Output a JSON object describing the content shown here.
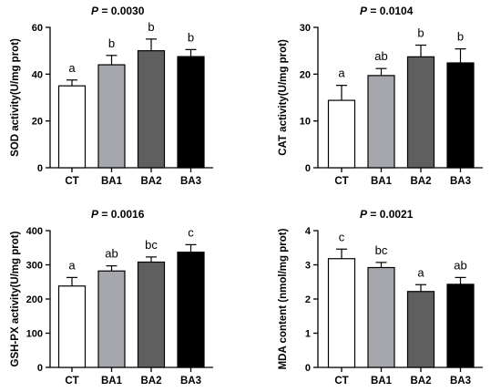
{
  "chart_data": [
    {
      "type": "bar",
      "annotation": "P = 0.0030",
      "ylabel": "SOD activity(U/mg prot)",
      "categories": [
        "CT",
        "BA1",
        "BA2",
        "BA3"
      ],
      "values": [
        35,
        44,
        50,
        47.5
      ],
      "errors": [
        2.5,
        4,
        5,
        3
      ],
      "letters": [
        "a",
        "b",
        "b",
        "b"
      ],
      "colors": [
        "#ffffff",
        "#a6a6ad",
        "#5f5f5f",
        "#000000"
      ],
      "ylim": [
        0,
        60
      ],
      "yticks": [
        0,
        20,
        40,
        60
      ]
    },
    {
      "type": "bar",
      "annotation": "P = 0.0104",
      "ylabel": "CAT activity(U/mg prot)",
      "categories": [
        "CT",
        "BA1",
        "BA2",
        "BA3"
      ],
      "values": [
        14.4,
        19.7,
        23.7,
        22.4
      ],
      "errors": [
        3.2,
        1.5,
        2.5,
        3
      ],
      "letters": [
        "a",
        "ab",
        "b",
        "b"
      ],
      "colors": [
        "#ffffff",
        "#a6a6ad",
        "#5f5f5f",
        "#000000"
      ],
      "ylim": [
        0,
        30
      ],
      "yticks": [
        0,
        10,
        20,
        30
      ]
    },
    {
      "type": "bar",
      "annotation": "P = 0.0016",
      "ylabel": "GSH-PX activity(U/mg prot)",
      "categories": [
        "CT",
        "BA1",
        "BA2",
        "BA3"
      ],
      "values": [
        238,
        282,
        308,
        337
      ],
      "errors": [
        25,
        15,
        15,
        22
      ],
      "letters": [
        "a",
        "ab",
        "bc",
        "c"
      ],
      "colors": [
        "#ffffff",
        "#a6a6ad",
        "#5f5f5f",
        "#000000"
      ],
      "ylim": [
        0,
        400
      ],
      "yticks": [
        0,
        100,
        200,
        300,
        400
      ]
    },
    {
      "type": "bar",
      "annotation": "P = 0.0021",
      "ylabel": "MDA content (nmol/mg prot)",
      "categories": [
        "CT",
        "BA1",
        "BA2",
        "BA3"
      ],
      "values": [
        3.18,
        2.92,
        2.22,
        2.43
      ],
      "errors": [
        0.28,
        0.15,
        0.2,
        0.2
      ],
      "letters": [
        "c",
        "bc",
        "a",
        "ab"
      ],
      "colors": [
        "#ffffff",
        "#a6a6ad",
        "#5f5f5f",
        "#000000"
      ],
      "ylim": [
        0,
        4
      ],
      "yticks": [
        0,
        1,
        2,
        3,
        4
      ]
    }
  ]
}
